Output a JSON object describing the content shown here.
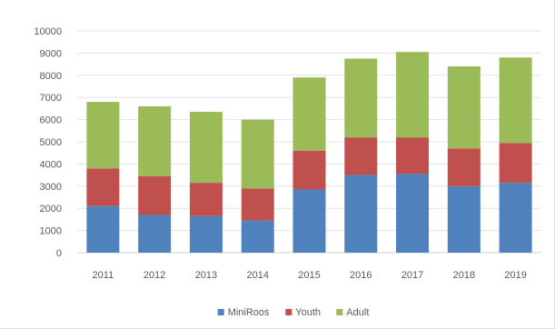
{
  "chart_data": {
    "type": "bar",
    "stacked": true,
    "title": "",
    "xlabel": "",
    "ylabel": "",
    "categories": [
      "2011",
      "2012",
      "2013",
      "2014",
      "2015",
      "2016",
      "2017",
      "2018",
      "2019"
    ],
    "series": [
      {
        "name": "MiniRoos",
        "color": "#4f81bd",
        "values": [
          2100,
          1700,
          1650,
          1450,
          2850,
          3500,
          3550,
          3000,
          3150
        ]
      },
      {
        "name": "Youth",
        "color": "#c0504d",
        "values": [
          1700,
          1750,
          1500,
          1450,
          1750,
          1700,
          1650,
          1700,
          1800
        ]
      },
      {
        "name": "Adult",
        "color": "#9bbb59",
        "values": [
          3000,
          3150,
          3200,
          3100,
          3300,
          3550,
          3850,
          3700,
          3850
        ]
      }
    ],
    "ylim": [
      0,
      10000
    ],
    "ytick_step": 1000,
    "yticks": [
      "0",
      "1000",
      "2000",
      "3000",
      "4000",
      "5000",
      "6000",
      "7000",
      "8000",
      "9000",
      "10000"
    ],
    "grid": true,
    "legend_position": "bottom"
  }
}
